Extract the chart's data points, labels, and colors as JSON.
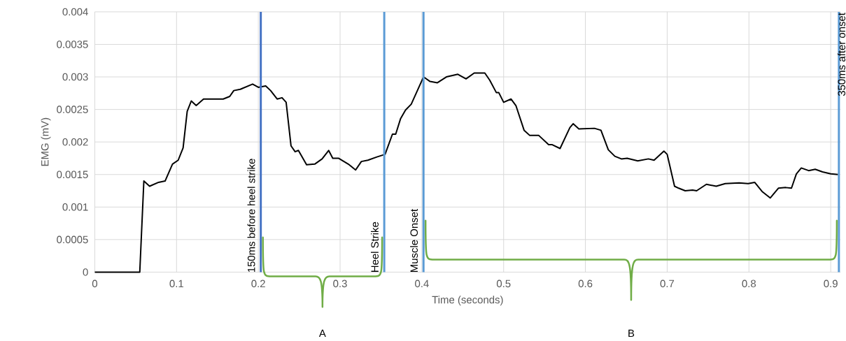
{
  "chart_data": {
    "type": "line",
    "xlabel": "Time (seconds)",
    "ylabel": "EMG (mV)",
    "xlim": [
      0,
      0.912
    ],
    "ylim": [
      0,
      0.004
    ],
    "xticks": [
      0,
      0.1,
      0.2,
      0.3,
      0.4,
      0.5,
      0.6,
      0.7,
      0.8,
      0.9
    ],
    "yticks": [
      0,
      0.0005,
      0.001,
      0.0015,
      0.002,
      0.0025,
      0.003,
      0.0035,
      0.004
    ],
    "grid": true,
    "marker": "none",
    "line_style": "solid",
    "series": [
      {
        "color": "#000000",
        "x": [
          0,
          0.053,
          0.055,
          0.06,
          0.067,
          0.078,
          0.086,
          0.095,
          0.102,
          0.108,
          0.113,
          0.118,
          0.124,
          0.133,
          0.157,
          0.165,
          0.17,
          0.178,
          0.193,
          0.2,
          0.209,
          0.215,
          0.223,
          0.229,
          0.234,
          0.24,
          0.245,
          0.249,
          0.259,
          0.269,
          0.278,
          0.286,
          0.291,
          0.298,
          0.31,
          0.319,
          0.326,
          0.334,
          0.345,
          0.355,
          0.364,
          0.368,
          0.374,
          0.38,
          0.387,
          0.402,
          0.41,
          0.419,
          0.43,
          0.444,
          0.454,
          0.464,
          0.477,
          0.483,
          0.491,
          0.494,
          0.5,
          0.509,
          0.515,
          0.525,
          0.532,
          0.543,
          0.555,
          0.559,
          0.569,
          0.581,
          0.585,
          0.592,
          0.611,
          0.619,
          0.628,
          0.636,
          0.644,
          0.651,
          0.664,
          0.677,
          0.684,
          0.696,
          0.7,
          0.709,
          0.714,
          0.722,
          0.731,
          0.736,
          0.748,
          0.76,
          0.771,
          0.788,
          0.799,
          0.807,
          0.816,
          0.826,
          0.836,
          0.845,
          0.852,
          0.858,
          0.864,
          0.873,
          0.881,
          0.89,
          0.9,
          0.909
        ],
        "values": [
          0,
          0,
          0,
          0.0014,
          0.00132,
          0.00138,
          0.0014,
          0.00166,
          0.00172,
          0.00191,
          0.00247,
          0.00263,
          0.00256,
          0.00266,
          0.00266,
          0.0027,
          0.00279,
          0.00281,
          0.00289,
          0.00284,
          0.00286,
          0.00279,
          0.00266,
          0.00268,
          0.00261,
          0.00194,
          0.00185,
          0.00187,
          0.00165,
          0.00166,
          0.00174,
          0.00187,
          0.00175,
          0.00175,
          0.00166,
          0.00157,
          0.0017,
          0.00172,
          0.00177,
          0.00181,
          0.00212,
          0.00212,
          0.00236,
          0.00249,
          0.00258,
          0.003,
          0.00293,
          0.00291,
          0.003,
          0.00304,
          0.00297,
          0.00306,
          0.00306,
          0.00295,
          0.00276,
          0.00276,
          0.00261,
          0.00266,
          0.00256,
          0.00218,
          0.0021,
          0.0021,
          0.00196,
          0.00196,
          0.0019,
          0.00222,
          0.00228,
          0.0022,
          0.00221,
          0.00218,
          0.00188,
          0.00178,
          0.00174,
          0.00175,
          0.00171,
          0.00174,
          0.00172,
          0.00186,
          0.00181,
          0.00132,
          0.00129,
          0.00125,
          0.00126,
          0.00125,
          0.00135,
          0.00132,
          0.00136,
          0.00137,
          0.00136,
          0.00138,
          0.00124,
          0.00114,
          0.00129,
          0.0013,
          0.00129,
          0.00151,
          0.0016,
          0.00156,
          0.00158,
          0.00154,
          0.00151,
          0.0015
        ]
      }
    ],
    "ref_lines": [
      {
        "axis": "x",
        "value": 0.203,
        "label": "150ms before heel strike",
        "color": "#4472c4"
      },
      {
        "axis": "x",
        "value": 0.354,
        "label": "Heel Strike",
        "color": "#5b9bd5"
      },
      {
        "axis": "x",
        "value": 0.402,
        "label": "Muscle Onset",
        "color": "#5b9bd5"
      },
      {
        "axis": "x",
        "value": 0.91,
        "label": "350ms after onset",
        "color": "#5b9bd5"
      }
    ],
    "annotations": [
      "A",
      "B"
    ]
  }
}
